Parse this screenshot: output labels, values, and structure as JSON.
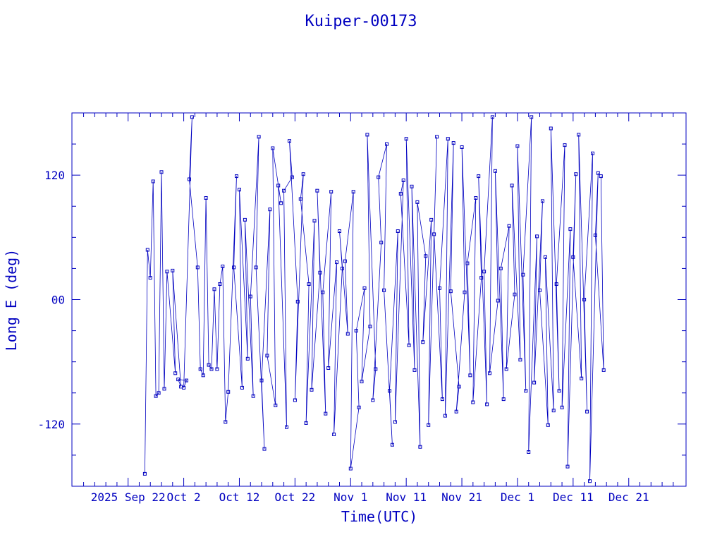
{
  "chart_data": {
    "type": "line",
    "title": "Kuiper-00173",
    "xlabel": "Time(UTC)",
    "ylabel": "Long E (deg)",
    "x_range_days_from_sep22": [
      -10.1,
      100.3
    ],
    "ylim": [
      -180,
      180
    ],
    "y_ticks": [
      -120,
      0,
      120
    ],
    "y_tick_labels": [
      "-120",
      "00",
      "120"
    ],
    "x_tick_labels": [
      "2025 Sep 22",
      "Oct  2",
      "Oct 12",
      "Oct 22",
      "Nov  1",
      "Nov 11",
      "Nov 21",
      "Dec  1",
      "Dec 11",
      "Dec 21"
    ],
    "x_tick_dates": [
      "2025-09-22",
      "2025-10-02",
      "2025-10-12",
      "2025-10-22",
      "2025-11-01",
      "2025-11-11",
      "2025-11-21",
      "2025-12-01",
      "2025-12-11",
      "2025-12-21"
    ],
    "grid": false,
    "line_color": "#0000c0",
    "series": [
      {
        "name": "",
        "marker": "square",
        "points": [
          [
            "2025-09-25",
            -168
          ],
          [
            "2025-09-25",
            48
          ],
          [
            "2025-09-26",
            21
          ],
          [
            "2025-09-26",
            114
          ],
          [
            "2025-09-27",
            -93
          ],
          [
            "2025-09-27",
            -90
          ],
          [
            "2025-09-28",
            123
          ],
          [
            "2025-09-28",
            -86
          ],
          [
            "2025-09-29",
            27
          ],
          [
            "2025-09-30",
            -71
          ],
          [
            "2025-09-30",
            28
          ],
          [
            "2025-10-01",
            -84
          ],
          [
            "2025-10-01",
            -77
          ],
          [
            "2025-10-02",
            -78
          ],
          [
            "2025-10-02",
            -85
          ],
          [
            "2025-10-03",
            176
          ],
          [
            "2025-10-03",
            116
          ],
          [
            "2025-10-04",
            31
          ],
          [
            "2025-10-05",
            -67
          ],
          [
            "2025-10-05",
            -73
          ],
          [
            "2025-10-06",
            98
          ],
          [
            "2025-10-06",
            -63
          ],
          [
            "2025-10-07",
            -67
          ],
          [
            "2025-10-07",
            10
          ],
          [
            "2025-10-08",
            -67
          ],
          [
            "2025-10-08",
            15
          ],
          [
            "2025-10-09",
            32
          ],
          [
            "2025-10-09",
            -118
          ],
          [
            "2025-10-10",
            -89
          ],
          [
            "2025-10-11",
            119
          ],
          [
            "2025-10-11",
            31
          ],
          [
            "2025-10-12",
            -85
          ],
          [
            "2025-10-12",
            106
          ],
          [
            "2025-10-13",
            -57
          ],
          [
            "2025-10-13",
            77
          ],
          [
            "2025-10-14",
            -93
          ],
          [
            "2025-10-14",
            3
          ],
          [
            "2025-10-15",
            157
          ],
          [
            "2025-10-15",
            31
          ],
          [
            "2025-10-16",
            -144
          ],
          [
            "2025-10-16",
            -78
          ],
          [
            "2025-10-17",
            87
          ],
          [
            "2025-10-17",
            -54
          ],
          [
            "2025-10-18",
            -102
          ],
          [
            "2025-10-18",
            146
          ],
          [
            "2025-10-19",
            93
          ],
          [
            "2025-10-19",
            110
          ],
          [
            "2025-10-20",
            -123
          ],
          [
            "2025-10-20",
            105
          ],
          [
            "2025-10-21",
            118
          ],
          [
            "2025-10-21",
            153
          ],
          [
            "2025-10-22",
            -2
          ],
          [
            "2025-10-22",
            -97
          ],
          [
            "2025-10-23",
            121
          ],
          [
            "2025-10-23",
            97
          ],
          [
            "2025-10-24",
            15
          ],
          [
            "2025-10-24",
            -119
          ],
          [
            "2025-10-25",
            76
          ],
          [
            "2025-10-25",
            -87
          ],
          [
            "2025-10-26",
            26
          ],
          [
            "2025-10-26",
            105
          ],
          [
            "2025-10-27",
            -110
          ],
          [
            "2025-10-27",
            7
          ],
          [
            "2025-10-28",
            104
          ],
          [
            "2025-10-28",
            -66
          ],
          [
            "2025-10-29",
            36
          ],
          [
            "2025-10-29",
            -130
          ],
          [
            "2025-10-30",
            30
          ],
          [
            "2025-10-30",
            66
          ],
          [
            "2025-10-31",
            -33
          ],
          [
            "2025-10-31",
            37
          ],
          [
            "2025-11-01",
            104
          ],
          [
            "2025-11-01",
            -163
          ],
          [
            "2025-11-02",
            -104
          ],
          [
            "2025-11-02",
            -30
          ],
          [
            "2025-11-03",
            11
          ],
          [
            "2025-11-03",
            -79
          ],
          [
            "2025-11-04",
            -26
          ],
          [
            "2025-11-04",
            159
          ],
          [
            "2025-11-05",
            -67
          ],
          [
            "2025-11-05",
            -97
          ],
          [
            "2025-11-06",
            55
          ],
          [
            "2025-11-06",
            118
          ],
          [
            "2025-11-07",
            150
          ],
          [
            "2025-11-07",
            9
          ],
          [
            "2025-11-08",
            -140
          ],
          [
            "2025-11-08",
            -88
          ],
          [
            "2025-11-09",
            66
          ],
          [
            "2025-11-09",
            -118
          ],
          [
            "2025-11-10",
            115
          ],
          [
            "2025-11-10",
            102
          ],
          [
            "2025-11-11",
            -44
          ],
          [
            "2025-11-11",
            155
          ],
          [
            "2025-11-12",
            -68
          ],
          [
            "2025-11-12",
            109
          ],
          [
            "2025-11-13",
            -142
          ],
          [
            "2025-11-13",
            94
          ],
          [
            "2025-11-14",
            42
          ],
          [
            "2025-11-14",
            -41
          ],
          [
            "2025-11-15",
            77
          ],
          [
            "2025-11-15",
            -121
          ],
          [
            "2025-11-16",
            157
          ],
          [
            "2025-11-16",
            63
          ],
          [
            "2025-11-17",
            -96
          ],
          [
            "2025-11-17",
            11
          ],
          [
            "2025-11-18",
            155
          ],
          [
            "2025-11-18",
            -112
          ],
          [
            "2025-11-19",
            151
          ],
          [
            "2025-11-19",
            8
          ],
          [
            "2025-11-20",
            -84
          ],
          [
            "2025-11-20",
            -108
          ],
          [
            "2025-11-21",
            7
          ],
          [
            "2025-11-21",
            147
          ],
          [
            "2025-11-22",
            -73
          ],
          [
            "2025-11-22",
            35
          ],
          [
            "2025-11-23",
            98
          ],
          [
            "2025-11-23",
            -99
          ],
          [
            "2025-11-24",
            21
          ],
          [
            "2025-11-24",
            119
          ],
          [
            "2025-11-25",
            -101
          ],
          [
            "2025-11-25",
            27
          ],
          [
            "2025-11-26",
            176
          ],
          [
            "2025-11-26",
            -71
          ],
          [
            "2025-11-27",
            -1
          ],
          [
            "2025-11-27",
            124
          ],
          [
            "2025-11-28",
            -96
          ],
          [
            "2025-11-28",
            30
          ],
          [
            "2025-11-29",
            71
          ],
          [
            "2025-11-29",
            -67
          ],
          [
            "2025-11-30",
            5
          ],
          [
            "2025-11-30",
            110
          ],
          [
            "2025-12-01",
            -58
          ],
          [
            "2025-12-01",
            148
          ],
          [
            "2025-12-02",
            -88
          ],
          [
            "2025-12-02",
            24
          ],
          [
            "2025-12-03",
            176
          ],
          [
            "2025-12-03",
            -147
          ],
          [
            "2025-12-04",
            61
          ],
          [
            "2025-12-04",
            -80
          ],
          [
            "2025-12-05",
            95
          ],
          [
            "2025-12-05",
            9
          ],
          [
            "2025-12-06",
            -121
          ],
          [
            "2025-12-06",
            41
          ],
          [
            "2025-12-07",
            -107
          ],
          [
            "2025-12-07",
            165
          ],
          [
            "2025-12-08",
            -88
          ],
          [
            "2025-12-08",
            15
          ],
          [
            "2025-12-09",
            149
          ],
          [
            "2025-12-09",
            -104
          ],
          [
            "2025-12-10",
            68
          ],
          [
            "2025-12-10",
            -161
          ],
          [
            "2025-12-11",
            121
          ],
          [
            "2025-12-11",
            41
          ],
          [
            "2025-12-12",
            -76
          ],
          [
            "2025-12-12",
            159
          ],
          [
            "2025-12-13",
            -108
          ],
          [
            "2025-12-13",
            0
          ],
          [
            "2025-12-14",
            141
          ],
          [
            "2025-12-14",
            -175
          ],
          [
            "2025-12-15",
            122
          ],
          [
            "2025-12-15",
            62
          ],
          [
            "2025-12-16",
            -68
          ],
          [
            "2025-12-16",
            119
          ]
        ]
      }
    ]
  }
}
